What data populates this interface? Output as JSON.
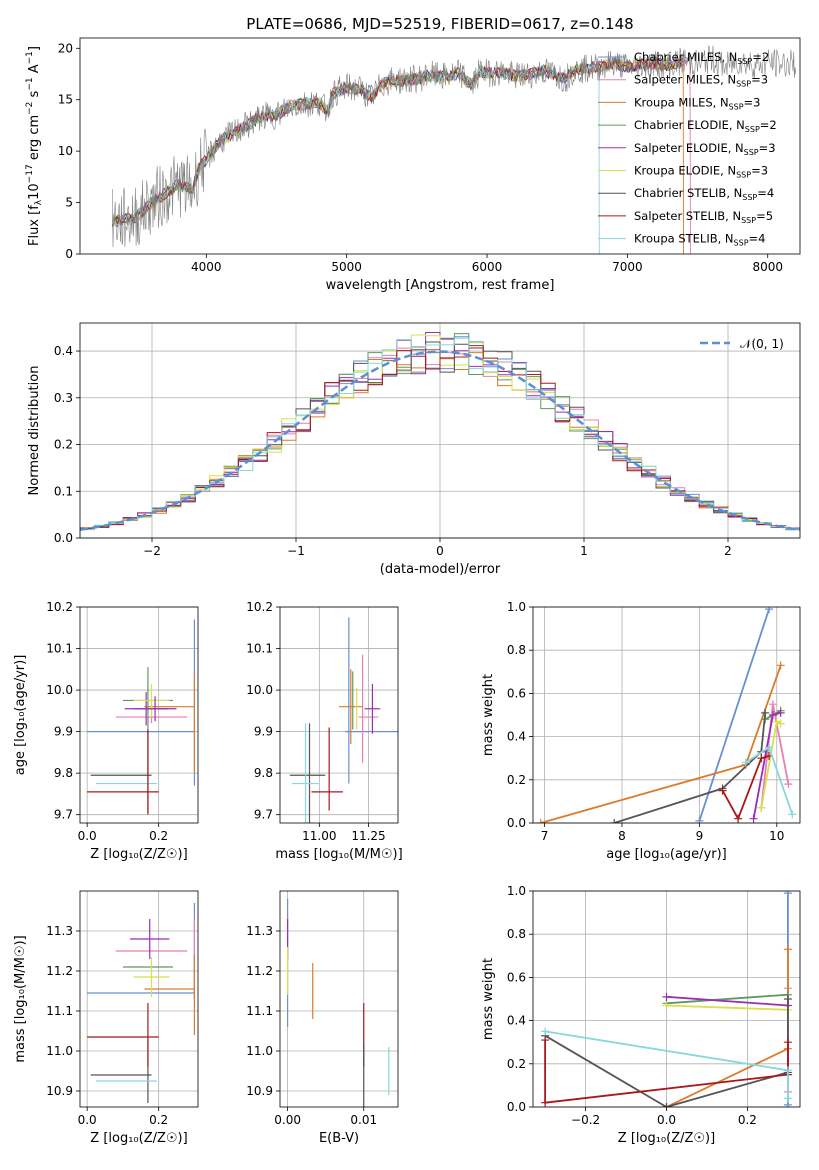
{
  "figure": {
    "title": "PLATE=0686, MJD=52519, FIBERID=0617, z=0.148"
  },
  "models": [
    {
      "name": "Chabrier MILES, N",
      "sub": "SSP",
      "tail": "=2",
      "color": "#6a8fd6"
    },
    {
      "name": "Salpeter MILES, N",
      "sub": "SSP",
      "tail": "=3",
      "color": "#e87fb1"
    },
    {
      "name": "Kroupa MILES, N",
      "sub": "SSP",
      "tail": "=3",
      "color": "#dc7a2a"
    },
    {
      "name": "Chabrier ELODIE, N",
      "sub": "SSP",
      "tail": "=2",
      "color": "#5e9a5e"
    },
    {
      "name": "Salpeter ELODIE, N",
      "sub": "SSP",
      "tail": "=3",
      "color": "#9a2fb6"
    },
    {
      "name": "Kroupa ELODIE, N",
      "sub": "SSP",
      "tail": "=3",
      "color": "#d8e04a"
    },
    {
      "name": "Chabrier STELIB, N",
      "sub": "SSP",
      "tail": "=4",
      "color": "#555555"
    },
    {
      "name": "Salpeter STELIB, N",
      "sub": "SSP",
      "tail": "=5",
      "color": "#a8181c"
    },
    {
      "name": "Kroupa STELIB, N",
      "sub": "SSP",
      "tail": "=4",
      "color": "#86d8dc"
    }
  ],
  "chart_data": [
    {
      "id": "spectrum",
      "type": "line",
      "xlabel": "wavelength [Angstrom, rest frame]",
      "ylabel_pre": "Flux [f",
      "ylabel_lam": "λ",
      "ylabel_mid": "10",
      "ylabel_e17": "−17",
      "ylabel_post1": " erg cm",
      "ylabel_e2": "−2",
      "ylabel_post2": " s",
      "ylabel_e1": "−1",
      "ylabel_post3": " A",
      "ylabel_e1b": "−1",
      "ylabel_end": "]",
      "xlim": [
        3100,
        8230
      ],
      "ylim": [
        0,
        21
      ],
      "xticks": [
        4000,
        5000,
        6000,
        7000,
        8000
      ],
      "yticks": [
        0,
        5,
        10,
        15,
        20
      ],
      "data_color": "#808080",
      "spectrum_x": [
        3330,
        3400,
        3500,
        3550,
        3600,
        3700,
        3800,
        3900,
        3950,
        4000,
        4100,
        4200,
        4300,
        4400,
        4500,
        4600,
        4700,
        4800,
        4861,
        4900,
        5000,
        5100,
        5175,
        5250,
        5300,
        5400,
        5500,
        5600,
        5700,
        5800,
        5893,
        5950,
        6000,
        6100,
        6200,
        6300,
        6400,
        6500,
        6563,
        6600,
        6700,
        6800,
        6900,
        7000,
        7100,
        7200,
        7300,
        7400,
        7500,
        7600,
        7700,
        7800,
        7900,
        8000,
        8100,
        8200
      ],
      "spectrum_y": [
        3.2,
        3.3,
        3.6,
        4.2,
        4.9,
        5.8,
        6.8,
        6.2,
        8.5,
        9.2,
        11.0,
        11.8,
        12.6,
        13.4,
        13.5,
        14.4,
        14.6,
        14.8,
        13.9,
        15.6,
        16.2,
        16.0,
        15.2,
        16.5,
        16.8,
        16.9,
        17.0,
        17.4,
        17.2,
        17.6,
        16.4,
        17.8,
        17.6,
        17.7,
        17.3,
        17.4,
        17.8,
        17.4,
        17.0,
        17.8,
        18.0,
        18.2,
        18.6,
        18.2,
        18.4,
        18.5,
        18.3,
        18.8,
        18.5,
        19.0,
        18.2,
        18.8,
        18.4,
        18.6,
        18.5,
        18.5
      ]
    },
    {
      "id": "residuals",
      "type": "bar",
      "xlabel": "(data-model)/error",
      "ylabel": "Normed distribution",
      "xlim": [
        -2.5,
        2.5
      ],
      "ylim": [
        0,
        0.46
      ],
      "xticks": [
        -2,
        -1,
        0,
        1,
        2
      ],
      "xtick_labels": [
        "−2",
        "−1",
        "0",
        "1",
        "2"
      ],
      "yticks": [
        0,
        0.1,
        0.2,
        0.3,
        0.4
      ],
      "ytick_labels": [
        "0.0",
        "0.1",
        "0.2",
        "0.3",
        "0.4"
      ],
      "legend": {
        "label": "𝒩(0, 1)",
        "position": "upper-right",
        "color": "#5b8fd6"
      },
      "bin_edges_start": -2.5,
      "bin_width": 0.1
    },
    {
      "id": "age_vs_Z",
      "type": "scatter",
      "xlabel": "Z [log₁₀(Z/Z☉)]",
      "ylabel": "age  [log₁₀(age/yr)]",
      "xlim": [
        -0.02,
        0.31
      ],
      "ylim": [
        9.68,
        10.2
      ],
      "xticks": [
        0.0,
        0.2
      ],
      "xtick_labels": [
        "0.0",
        "0.2"
      ],
      "yticks": [
        9.7,
        9.8,
        9.9,
        10.0,
        10.1,
        10.2
      ],
      "ytick_labels": [
        "9.7",
        "9.8",
        "9.9",
        "10.0",
        "10.1",
        "10.2"
      ],
      "points": [
        {
          "x": 0.15,
          "xerr": 0.15,
          "y": 9.9,
          "yerr": 0.0,
          "c": 0
        },
        {
          "x": 0.18,
          "xerr": 0.1,
          "y": 9.935,
          "yerr": 0.015,
          "c": 1
        },
        {
          "x": 0.3,
          "xerr": 0.0,
          "y": 9.97,
          "yerr": 0.2,
          "c": 0
        },
        {
          "x": 0.3,
          "xerr": 0.0,
          "y": 9.92,
          "yerr": 0.12,
          "c": 2
        },
        {
          "x": 0.23,
          "xerr": 0.07,
          "y": 9.96,
          "yerr": 0.0,
          "c": 2
        },
        {
          "x": 0.17,
          "xerr": 0.07,
          "y": 9.975,
          "yerr": 0.08,
          "c": 3
        },
        {
          "x": 0.165,
          "xerr": 0.06,
          "y": 9.955,
          "yerr": 0.04,
          "c": 4
        },
        {
          "x": 0.18,
          "xerr": 0.05,
          "y": 9.975,
          "yerr": 0.04,
          "c": 5
        },
        {
          "x": 0.19,
          "xerr": 0.06,
          "y": 9.955,
          "yerr": 0.03,
          "c": 4
        },
        {
          "x": 0.095,
          "xerr": 0.085,
          "y": 9.795,
          "yerr": 0.0,
          "c": 6
        },
        {
          "x": 0.17,
          "xerr": 0.0,
          "y": 9.8,
          "yerr": 0.1,
          "c": 6
        },
        {
          "x": 0.11,
          "xerr": 0.085,
          "y": 9.775,
          "yerr": 0.0,
          "c": 8
        },
        {
          "x": 0.1,
          "xerr": 0.1,
          "y": 9.755,
          "yerr": 0.0,
          "c": 7
        },
        {
          "x": 0.17,
          "xerr": 0.0,
          "y": 9.805,
          "yerr": 0.1,
          "c": 7
        }
      ]
    },
    {
      "id": "age_vs_mass",
      "type": "scatter",
      "xlabel": "mass [log₁₀(M/M☉)]",
      "ylabel": "",
      "xlim": [
        10.8,
        11.4
      ],
      "ylim": [
        9.68,
        10.2
      ],
      "xticks": [
        11.0,
        11.25
      ],
      "xtick_labels": [
        "11.00",
        "11.25"
      ],
      "yticks": [
        9.7,
        9.8,
        9.9,
        10.0,
        10.1,
        10.2
      ],
      "ytick_labels": [
        "9.7",
        "9.8",
        "9.9",
        "10.0",
        "10.1",
        "10.2"
      ],
      "points": [
        {
          "x": 11.15,
          "xerr": 0.0,
          "y": 9.975,
          "yerr": 0.2,
          "c": 0
        },
        {
          "x": 11.27,
          "xerr": 0.14,
          "y": 9.9,
          "yerr": 0.0,
          "c": 0
        },
        {
          "x": 11.22,
          "xerr": 0.0,
          "y": 9.955,
          "yerr": 0.13,
          "c": 1
        },
        {
          "x": 11.25,
          "xerr": 0.05,
          "y": 9.935,
          "yerr": 0.0,
          "c": 1
        },
        {
          "x": 11.16,
          "xerr": 0.06,
          "y": 9.96,
          "yerr": 0.09,
          "c": 2
        },
        {
          "x": 11.17,
          "xerr": 0.0,
          "y": 9.975,
          "yerr": 0.07,
          "c": 3
        },
        {
          "x": 11.27,
          "xerr": 0.04,
          "y": 9.955,
          "yerr": 0.06,
          "c": 4
        },
        {
          "x": 11.19,
          "xerr": 0.0,
          "y": 9.955,
          "yerr": 0.05,
          "c": 5
        },
        {
          "x": 10.94,
          "xerr": 0.09,
          "y": 9.795,
          "yerr": 0.0,
          "c": 6
        },
        {
          "x": 10.95,
          "xerr": 0.0,
          "y": 9.8,
          "yerr": 0.12,
          "c": 6
        },
        {
          "x": 10.93,
          "xerr": 0.07,
          "y": 9.775,
          "yerr": 0.0,
          "c": 8
        },
        {
          "x": 10.93,
          "xerr": 0.0,
          "y": 9.78,
          "yerr": 0.14,
          "c": 8
        },
        {
          "x": 11.05,
          "xerr": 0.0,
          "y": 9.81,
          "yerr": 0.1,
          "c": 7
        },
        {
          "x": 11.04,
          "xerr": 0.08,
          "y": 9.755,
          "yerr": 0.0,
          "c": 7
        }
      ]
    },
    {
      "id": "weight_vs_age",
      "type": "line",
      "xlabel": "age  [log₁₀(age/yr)]",
      "ylabel": "mass weight",
      "xlim": [
        6.85,
        10.3
      ],
      "ylim": [
        0,
        1.0
      ],
      "xticks": [
        7,
        8,
        9,
        10
      ],
      "xtick_labels": [
        "7",
        "8",
        "9",
        "10"
      ],
      "yticks": [
        0,
        0.2,
        0.4,
        0.6,
        0.8,
        1.0
      ],
      "ytick_labels": [
        "0.0",
        "0.2",
        "0.4",
        "0.6",
        "0.8",
        "1.0"
      ],
      "series": [
        {
          "c": 0,
          "x": [
            9.0,
            9.9
          ],
          "y": [
            0.01,
            0.99
          ]
        },
        {
          "c": 1,
          "x": [
            9.8,
            9.95,
            10.15
          ],
          "y": [
            0.07,
            0.55,
            0.18
          ]
        },
        {
          "c": 2,
          "x": [
            6.95,
            9.6,
            10.05
          ],
          "y": [
            0.0,
            0.27,
            0.73
          ]
        },
        {
          "c": 3,
          "x": [
            9.85,
            10.05
          ],
          "y": [
            0.48,
            0.52
          ]
        },
        {
          "c": 4,
          "x": [
            9.7,
            9.95,
            10.05
          ],
          "y": [
            0.02,
            0.5,
            0.51
          ]
        },
        {
          "c": 5,
          "x": [
            9.8,
            10.0,
            10.05
          ],
          "y": [
            0.07,
            0.47,
            0.46
          ]
        },
        {
          "c": 6,
          "x": [
            7.9,
            9.3,
            9.8,
            9.85
          ],
          "y": [
            0.0,
            0.16,
            0.33,
            0.51
          ]
        },
        {
          "c": 7,
          "x": [
            9.3,
            9.5,
            9.8,
            9.9
          ],
          "y": [
            0.15,
            0.02,
            0.3,
            0.31
          ]
        },
        {
          "c": 8,
          "x": [
            9.6,
            9.9,
            10.2
          ],
          "y": [
            0.28,
            0.35,
            0.04
          ]
        }
      ]
    },
    {
      "id": "mass_vs_Z",
      "type": "scatter",
      "xlabel": "Z [log₁₀(Z/Z☉)]",
      "ylabel": "mass [log₁₀(M/M☉)]",
      "xlim": [
        -0.02,
        0.31
      ],
      "ylim": [
        10.86,
        11.4
      ],
      "xticks": [
        0.0,
        0.2
      ],
      "xtick_labels": [
        "0.0",
        "0.2"
      ],
      "yticks": [
        10.9,
        11.0,
        11.1,
        11.2,
        11.3
      ],
      "ytick_labels": [
        "10.9",
        "11.0",
        "11.1",
        "11.2",
        "11.3"
      ],
      "points": [
        {
          "x": 0.15,
          "xerr": 0.15,
          "y": 11.145,
          "yerr": 0.0,
          "c": 0
        },
        {
          "x": 0.3,
          "xerr": 0.0,
          "y": 11.25,
          "yerr": 0.12,
          "c": 0
        },
        {
          "x": 0.18,
          "xerr": 0.1,
          "y": 11.25,
          "yerr": 0.0,
          "c": 1
        },
        {
          "x": 0.3,
          "xerr": 0.0,
          "y": 11.23,
          "yerr": 0.1,
          "c": 1
        },
        {
          "x": 0.23,
          "xerr": 0.07,
          "y": 11.155,
          "yerr": 0.0,
          "c": 2
        },
        {
          "x": 0.3,
          "xerr": 0.0,
          "y": 11.14,
          "yerr": 0.1,
          "c": 2
        },
        {
          "x": 0.17,
          "xerr": 0.07,
          "y": 11.21,
          "yerr": 0.0,
          "c": 3
        },
        {
          "x": 0.175,
          "xerr": 0.055,
          "y": 11.28,
          "yerr": 0.05,
          "c": 4
        },
        {
          "x": 0.18,
          "xerr": 0.05,
          "y": 11.185,
          "yerr": 0.05,
          "c": 5
        },
        {
          "x": 0.095,
          "xerr": 0.085,
          "y": 10.94,
          "yerr": 0.0,
          "c": 6
        },
        {
          "x": 0.17,
          "xerr": 0.0,
          "y": 10.95,
          "yerr": 0.08,
          "c": 6
        },
        {
          "x": 0.11,
          "xerr": 0.085,
          "y": 10.925,
          "yerr": 0.0,
          "c": 8
        },
        {
          "x": 0.1,
          "xerr": 0.1,
          "y": 11.035,
          "yerr": 0.0,
          "c": 7
        },
        {
          "x": 0.17,
          "xerr": 0.0,
          "y": 11.04,
          "yerr": 0.08,
          "c": 7
        }
      ]
    },
    {
      "id": "mass_vs_ebv",
      "type": "scatter",
      "xlabel": "E(B-V)",
      "ylabel": "",
      "xlim": [
        -0.001,
        0.0145
      ],
      "ylim": [
        10.86,
        11.4
      ],
      "xticks": [
        0.0,
        0.01
      ],
      "xtick_labels": [
        "0.00",
        "0.01"
      ],
      "yticks": [
        10.9,
        11.0,
        11.1,
        11.2,
        11.3
      ],
      "ytick_labels": [
        "10.9",
        "11.0",
        "11.1",
        "11.2",
        "11.3"
      ],
      "points": [
        {
          "x": 0.0,
          "xerr": 0.0,
          "y": 11.22,
          "yerr": 0.16,
          "c": 0
        },
        {
          "x": 0.0,
          "xerr": 0.0,
          "y": 11.28,
          "yerr": 0.05,
          "c": 4
        },
        {
          "x": 0.0,
          "xerr": 0.0,
          "y": 11.2,
          "yerr": 0.06,
          "c": 5
        },
        {
          "x": 0.0033,
          "xerr": 0.0,
          "y": 11.15,
          "yerr": 0.07,
          "c": 2
        },
        {
          "x": 0.01,
          "xerr": 0.0,
          "y": 11.04,
          "yerr": 0.08,
          "c": 7
        },
        {
          "x": 0.01,
          "xerr": 0.0,
          "y": 10.94,
          "yerr": 0.08,
          "c": 6
        },
        {
          "x": 0.0133,
          "xerr": 0.0,
          "y": 10.95,
          "yerr": 0.06,
          "c": 8
        }
      ]
    },
    {
      "id": "weight_vs_Z",
      "type": "line",
      "xlabel": "Z [log₁₀(Z/Z☉)]",
      "ylabel": "mass weight",
      "xlim": [
        -0.33,
        0.33
      ],
      "ylim": [
        0,
        1.0
      ],
      "xticks": [
        -0.2,
        0.0,
        0.2
      ],
      "xtick_labels": [
        "−0.2",
        "0.0",
        "0.2"
      ],
      "yticks": [
        0,
        0.2,
        0.4,
        0.6,
        0.8,
        1.0
      ],
      "ytick_labels": [
        "0.0",
        "0.2",
        "0.4",
        "0.6",
        "0.8",
        "1.0"
      ],
      "series": [
        {
          "c": 0,
          "x": [
            0.3,
            0.3
          ],
          "y": [
            0.01,
            0.99
          ]
        },
        {
          "c": 1,
          "x": [
            0.3,
            0.3
          ],
          "y": [
            0.07,
            0.55
          ]
        },
        {
          "c": 2,
          "x": [
            0.0,
            0.3,
            0.3
          ],
          "y": [
            0.0,
            0.27,
            0.73
          ]
        },
        {
          "c": 3,
          "x": [
            0.0,
            0.3
          ],
          "y": [
            0.48,
            0.52
          ]
        },
        {
          "c": 4,
          "x": [
            0.0,
            0.3
          ],
          "y": [
            0.51,
            0.47
          ]
        },
        {
          "c": 5,
          "x": [
            0.0,
            0.3
          ],
          "y": [
            0.47,
            0.45
          ]
        },
        {
          "c": 6,
          "x": [
            -0.3,
            0.0,
            0.3,
            0.3
          ],
          "y": [
            0.33,
            0.0,
            0.16,
            0.5
          ]
        },
        {
          "c": 7,
          "x": [
            -0.3,
            -0.3,
            0.3,
            0.3
          ],
          "y": [
            0.31,
            0.02,
            0.15,
            0.3
          ]
        },
        {
          "c": 8,
          "x": [
            -0.3,
            0.3,
            0.3
          ],
          "y": [
            0.35,
            0.17,
            0.04
          ]
        }
      ]
    }
  ]
}
